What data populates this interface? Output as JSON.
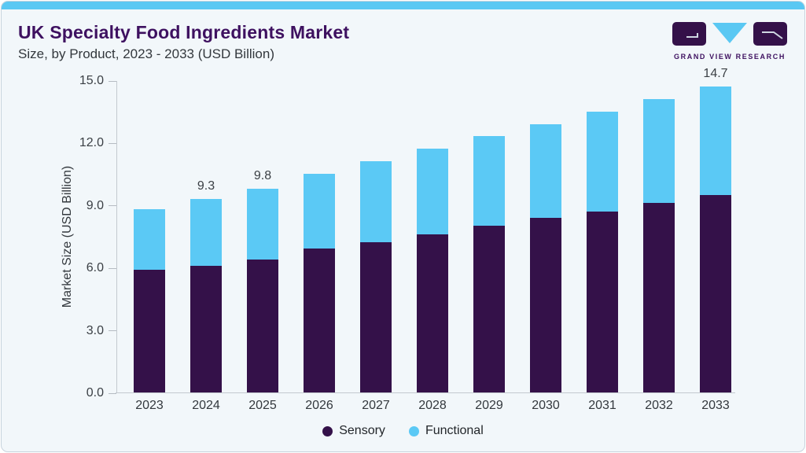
{
  "header": {
    "title": "UK Specialty Food Ingredients Market",
    "subtitle": "Size, by Product, 2023 - 2033 (USD Billion)",
    "logo_text": "GRAND VIEW RESEARCH"
  },
  "colors": {
    "accent_blue": "#5ac8f3",
    "title_purple": "#3e1160",
    "card_background": "#f2f7fa",
    "card_border": "#c7d3dd",
    "sensory_purple": "#341149",
    "functional_blue": "#5bc9f5"
  },
  "chart_data": {
    "type": "bar",
    "stacked": true,
    "title": "UK Specialty Food Ingredients Market",
    "subtitle": "Size, by Product, 2023 - 2033 (USD Billion)",
    "xlabel": "",
    "ylabel": "Market Size (USD Billion)",
    "ylim": [
      0,
      15
    ],
    "ytick_values": [
      0,
      3,
      6,
      9,
      12,
      15
    ],
    "ytick_labels": [
      "0.0",
      "3.0",
      "6.0",
      "9.0",
      "12.0",
      "15.0"
    ],
    "grid": false,
    "legend_position": "bottom",
    "categories": [
      "2023",
      "2024",
      "2025",
      "2026",
      "2027",
      "2028",
      "2029",
      "2030",
      "2031",
      "2032",
      "2033"
    ],
    "series": [
      {
        "name": "Sensory",
        "color": "#341149",
        "values": [
          5.9,
          6.1,
          6.4,
          6.9,
          7.2,
          7.6,
          8.0,
          8.4,
          8.7,
          9.1,
          9.5
        ]
      },
      {
        "name": "Functional",
        "color": "#5bc9f5",
        "values": [
          2.9,
          3.2,
          3.4,
          3.6,
          3.9,
          4.1,
          4.3,
          4.5,
          4.8,
          5.0,
          5.2
        ]
      }
    ],
    "totals": [
      8.8,
      9.3,
      9.8,
      10.5,
      11.1,
      11.7,
      12.3,
      12.9,
      13.5,
      14.1,
      14.7
    ],
    "total_labels": [
      "",
      "9.3",
      "9.8",
      "",
      "",
      "",
      "",
      "",
      "",
      "",
      "14.7"
    ]
  }
}
